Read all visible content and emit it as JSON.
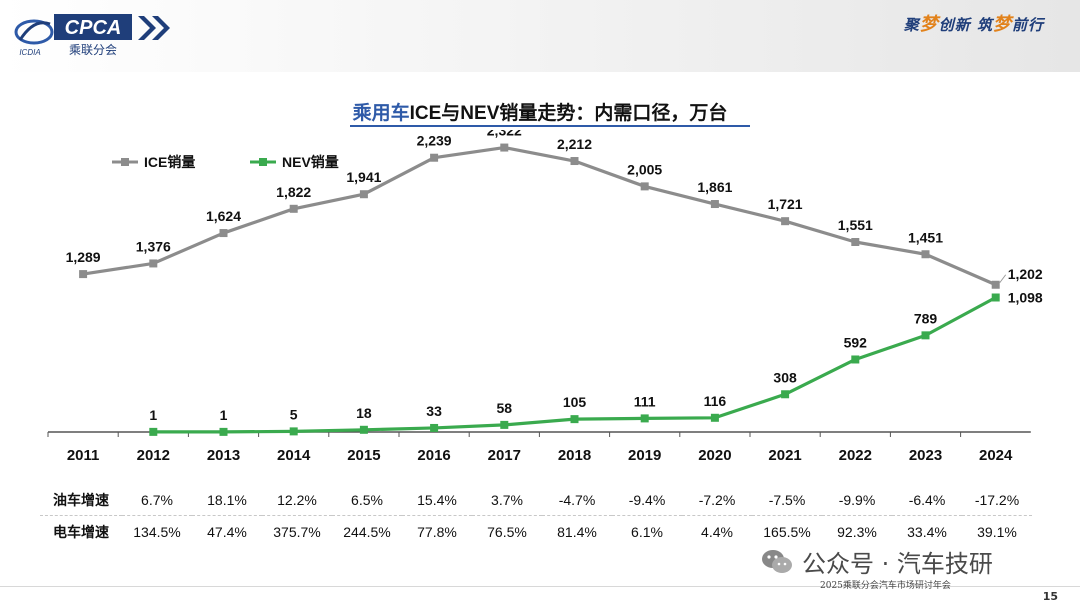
{
  "header": {
    "logo_text": "CPCA",
    "logo_subtitle": "乘联分会",
    "logo_small": "ICDIA",
    "slogan_parts": [
      "聚",
      "梦",
      "创新 ",
      "筑",
      "梦",
      "前行"
    ]
  },
  "title": {
    "highlight": "乘用车",
    "rest": "ICE与NEV销量走势：内需口径，万台"
  },
  "stats": {
    "rows": [
      {
        "label": "油车增速",
        "values": [
          "6.7%",
          "18.1%",
          "12.2%",
          "6.5%",
          "15.4%",
          "3.7%",
          "-4.7%",
          "-9.4%",
          "-7.2%",
          "-7.5%",
          "-9.9%",
          "-6.4%",
          "-17.2%"
        ]
      },
      {
        "label": "电车增速",
        "values": [
          "134.5%",
          "47.4%",
          "375.7%",
          "244.5%",
          "77.8%",
          "76.5%",
          "81.4%",
          "6.1%",
          "4.4%",
          "165.5%",
          "92.3%",
          "33.4%",
          "39.1%"
        ]
      }
    ]
  },
  "watermark": {
    "text": "公众号 · 汽车技研"
  },
  "footer": {
    "caption": "2025乘联分会汽车市场研讨年会",
    "page": "15"
  },
  "colors": {
    "ice": "#8c8c8c",
    "nev": "#3aaa4e",
    "title_blue": "#2e5aa8",
    "navy": "#1f3e7a"
  },
  "chart_data": {
    "type": "line",
    "x": [
      "2011",
      "2012",
      "2013",
      "2014",
      "2015",
      "2016",
      "2017",
      "2018",
      "2019",
      "2020",
      "2021",
      "2022",
      "2023",
      "2024"
    ],
    "series": [
      {
        "name": "ICE销量",
        "values": [
          1289,
          1376,
          1624,
          1822,
          1941,
          2239,
          2322,
          2212,
          2005,
          1861,
          1721,
          1551,
          1451,
          1202
        ],
        "labels": [
          "1,289",
          "1,376",
          "1,624",
          "1,822",
          "1,941",
          "2,239",
          "2,322",
          "2,212",
          "2,005",
          "1,861",
          "1,721",
          "1,551",
          "1,451",
          "1,202"
        ]
      },
      {
        "name": "NEV销量",
        "values": [
          null,
          1,
          1,
          5,
          18,
          33,
          58,
          105,
          111,
          116,
          308,
          592,
          789,
          1098
        ],
        "labels": [
          "",
          "1",
          "1",
          "5",
          "18",
          "33",
          "58",
          "105",
          "111",
          "116",
          "308",
          "592",
          "789",
          "1,098"
        ]
      }
    ],
    "legend": "top-left",
    "grid": false
  }
}
